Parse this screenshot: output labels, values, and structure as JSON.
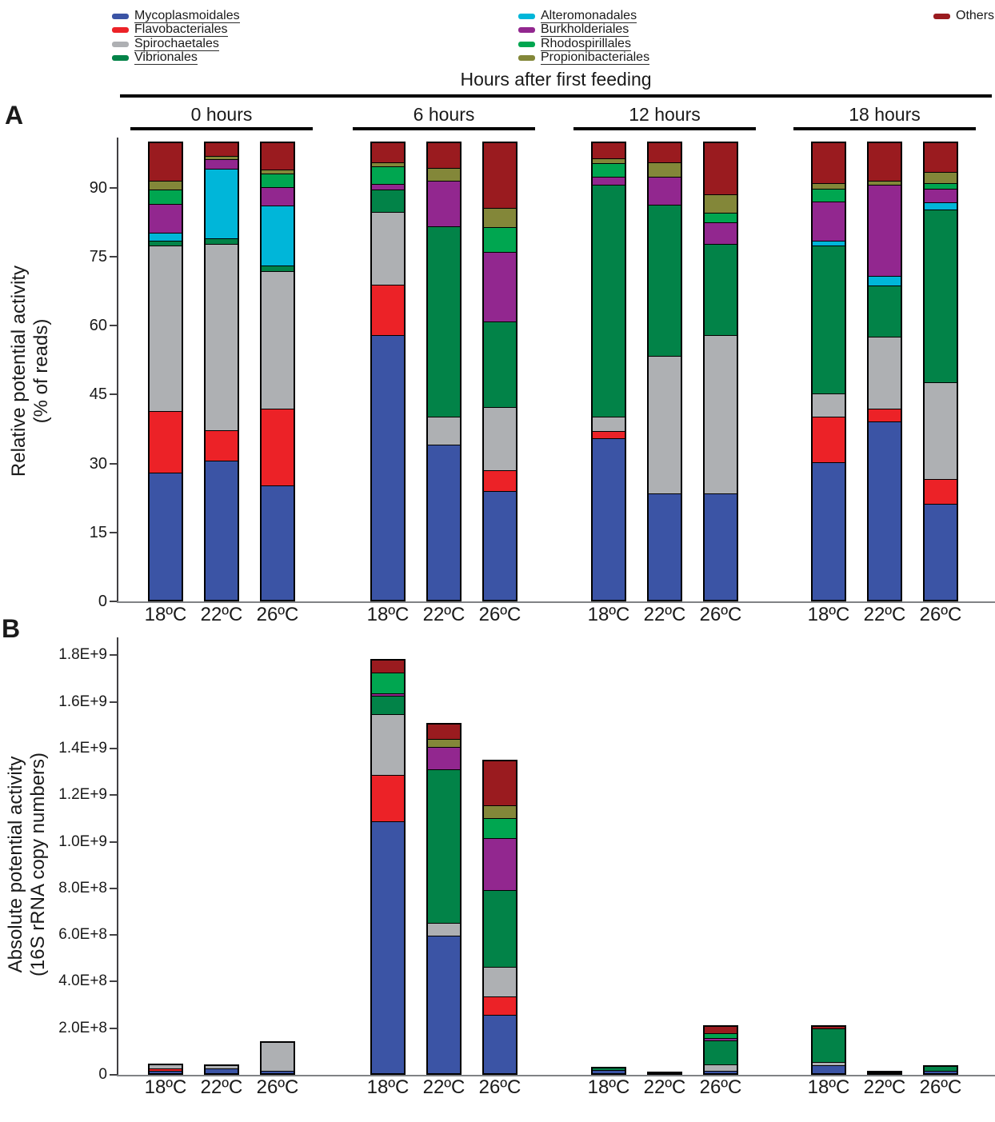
{
  "header": {
    "title": "Hours after first feeding",
    "group_labels": [
      "0 hours",
      "6 hours",
      "12 hours",
      "18 hours"
    ]
  },
  "legend": {
    "columns": [
      [
        "Mycoplasmoidales",
        "Flavobacteriales",
        "Spirochaetales",
        "Vibrionales"
      ],
      [
        "Alteromonadales",
        "Burkholderiales",
        "Rhodospirillales",
        "Propionibacteriales"
      ],
      [
        "Others"
      ]
    ]
  },
  "colors": {
    "Mycoplasmoidales": "#3B54A5",
    "Flavobacteriales": "#EC2227",
    "Spirochaetales": "#AEB0B3",
    "Vibrionales": "#028348",
    "Alteromonadales": "#00B6D9",
    "Burkholderiales": "#92278F",
    "Rhodospirillales": "#00A650",
    "Propionibacteriales": "#838739",
    "Others": "#9A1B1F"
  },
  "panel_a": {
    "letter": "A",
    "y_title": [
      "Relative potential activity",
      "(% of reads)"
    ],
    "y_tick_labels": [
      "0",
      "15",
      "30",
      "45",
      "60",
      "75",
      "90"
    ],
    "x_labels": [
      "18ºC",
      "22ºC",
      "26ºC"
    ]
  },
  "panel_b": {
    "letter": "B",
    "y_title": [
      "Absolute potential activity",
      "(16S rRNA copy numbers)"
    ],
    "y_tick_labels": [
      "0",
      "2.0E+8",
      "4.0E+8",
      "6.0E+8",
      "8.0E+8",
      "1.0E+9",
      "1.2E+9",
      "1.4E+9",
      "1.6E+9",
      "1.8E+9"
    ],
    "x_labels": [
      "18ºC",
      "22ºC",
      "26ºC"
    ]
  },
  "chart_data": [
    {
      "panel": "A",
      "type": "bar",
      "stacked": true,
      "title": "Relative potential activity",
      "ylabel": "Relative potential activity (% of reads)",
      "unit": "% of reads",
      "ylim": [
        0,
        100
      ],
      "yticks": [
        0,
        15,
        30,
        45,
        60,
        75,
        90
      ],
      "categories": [
        "18ºC",
        "22ºC",
        "26ºC"
      ],
      "taxa_order": [
        "Mycoplasmoidales",
        "Flavobacteriales",
        "Spirochaetales",
        "Vibrionales",
        "Alteromonadales",
        "Burkholderiales",
        "Rhodospirillales",
        "Propionibacteriales",
        "Others"
      ],
      "groups": [
        {
          "label": "0 hours",
          "bars": [
            {
              "temp": "18ºC",
              "values": [
                27.7,
                13.3,
                36.0,
                1.1,
                1.8,
                6.2,
                3.1,
                2.0,
                8.8
              ]
            },
            {
              "temp": "22ºC",
              "values": [
                30.3,
                6.6,
                40.5,
                1.2,
                15.2,
                2.1,
                0,
                0.7,
                3.4
              ]
            },
            {
              "temp": "26ºC",
              "values": [
                24.8,
                16.7,
                30.0,
                1.2,
                13.1,
                3.9,
                3.0,
                0.9,
                6.4
              ]
            }
          ]
        },
        {
          "label": "6 hours",
          "bars": [
            {
              "temp": "18ºC",
              "values": [
                57.5,
                11.1,
                15.8,
                4.9,
                0,
                1.1,
                3.9,
                0.9,
                4.8
              ]
            },
            {
              "temp": "22ºC",
              "values": [
                33.8,
                0,
                6.0,
                41.5,
                0,
                9.8,
                0,
                2.9,
                6.0
              ]
            },
            {
              "temp": "26ºC",
              "values": [
                23.6,
                4.6,
                13.7,
                18.6,
                0,
                15.1,
                5.4,
                4.2,
                14.8
              ]
            }
          ]
        },
        {
          "label": "12 hours",
          "bars": [
            {
              "temp": "18ºC",
              "values": [
                35.2,
                1.5,
                3.1,
                50.5,
                0,
                1.7,
                3.0,
                1.0,
                4.0
              ]
            },
            {
              "temp": "22ºC",
              "values": [
                23.1,
                0,
                29.9,
                33.0,
                0,
                6.0,
                0,
                3.1,
                4.9
              ]
            },
            {
              "temp": "26ºC",
              "values": [
                23.1,
                0,
                34.5,
                19.8,
                0,
                4.7,
                2.1,
                4.0,
                11.8
              ]
            }
          ]
        },
        {
          "label": "18 hours",
          "bars": [
            {
              "temp": "18ºC",
              "values": [
                30.0,
                9.8,
                5.0,
                32.2,
                1.1,
                8.6,
                2.7,
                1.3,
                9.3
              ]
            },
            {
              "temp": "22ºC",
              "values": [
                38.8,
                2.7,
                15.7,
                11.2,
                2.0,
                19.8,
                0,
                1.0,
                8.8
              ]
            },
            {
              "temp": "26ºC",
              "values": [
                20.9,
                5.4,
                21.0,
                37.5,
                1.7,
                2.9,
                1.3,
                2.3,
                7.0
              ]
            }
          ]
        }
      ]
    },
    {
      "panel": "B",
      "type": "bar",
      "stacked": true,
      "title": "Absolute potential activity",
      "ylabel": "Absolute potential activity (16S rRNA copy numbers)",
      "unit": "16S rRNA copy numbers",
      "ylim": [
        0,
        1800000000
      ],
      "yticks": [
        0,
        200000000,
        400000000,
        600000000,
        800000000,
        1000000000,
        1200000000,
        1400000000,
        1600000000,
        1800000000
      ],
      "categories": [
        "18ºC",
        "22ºC",
        "26ºC"
      ],
      "taxa_order": [
        "Mycoplasmoidales",
        "Flavobacteriales",
        "Spirochaetales",
        "Vibrionales",
        "Alteromonadales",
        "Burkholderiales",
        "Rhodospirillales",
        "Propionibacteriales",
        "Others"
      ],
      "groups": [
        {
          "label": "0 hours",
          "bars": [
            {
              "temp": "18ºC",
              "values": [
                12000000,
                10000000,
                15000000,
                0,
                0,
                0,
                0,
                0,
                10000000
              ]
            },
            {
              "temp": "22ºC",
              "values": [
                20000000,
                0,
                14000000,
                0,
                0,
                0,
                0,
                0,
                11000000
              ]
            },
            {
              "temp": "26ºC",
              "values": [
                9000000,
                0,
                125000000,
                0,
                0,
                0,
                0,
                0,
                11000000
              ]
            }
          ]
        },
        {
          "label": "6 hours",
          "bars": [
            {
              "temp": "18ºC",
              "values": [
                1080000000,
                200000000,
                260000000,
                80000000,
                0,
                10000000,
                90000000,
                0,
                65000000
              ]
            },
            {
              "temp": "22ºC",
              "values": [
                590000000,
                0,
                55000000,
                660000000,
                0,
                95000000,
                0,
                35000000,
                76000000
              ]
            },
            {
              "temp": "26ºC",
              "values": [
                250000000,
                80000000,
                125000000,
                330000000,
                0,
                225000000,
                85000000,
                55000000,
                200000000
              ]
            }
          ]
        },
        {
          "label": "12 hours",
          "bars": [
            {
              "temp": "18ºC",
              "values": [
                13000000,
                0,
                0,
                12000000,
                0,
                0,
                0,
                0,
                9000000
              ]
            },
            {
              "temp": "22ºC",
              "values": [
                5000000,
                0,
                0,
                0,
                0,
                0,
                0,
                0,
                10000000
              ]
            },
            {
              "temp": "26ºC",
              "values": [
                11000000,
                0,
                26000000,
                105000000,
                0,
                9000000,
                19000000,
                0,
                42000000
              ]
            }
          ]
        },
        {
          "label": "18 hours",
          "bars": [
            {
              "temp": "18ºC",
              "values": [
                34000000,
                0,
                15000000,
                143000000,
                0,
                0,
                0,
                0,
                20000000
              ]
            },
            {
              "temp": "22ºC",
              "values": [
                5000000,
                0,
                0,
                0,
                0,
                0,
                0,
                0,
                13000000
              ]
            },
            {
              "temp": "26ºC",
              "values": [
                11000000,
                0,
                0,
                20000000,
                0,
                0,
                0,
                0,
                11000000
              ]
            }
          ]
        }
      ]
    }
  ]
}
